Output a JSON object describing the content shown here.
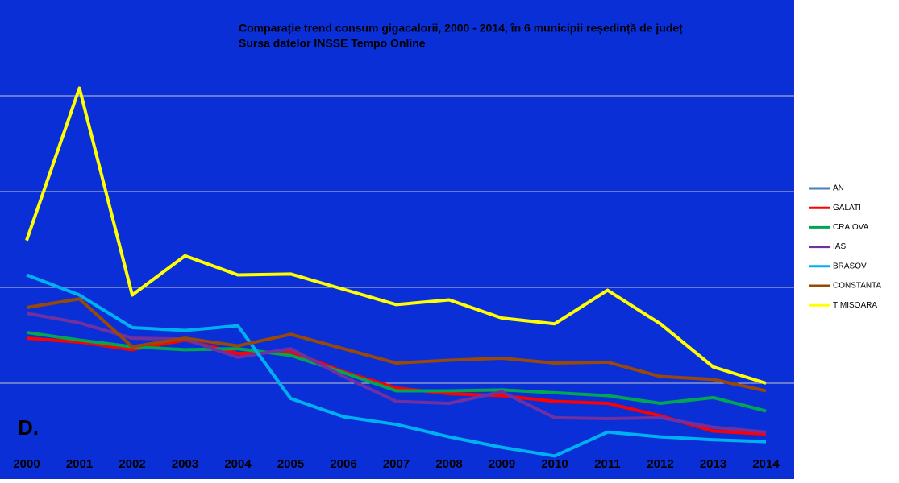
{
  "chart_data": {
    "type": "line",
    "title": "Comparație trend consum gigacalorii, 2000 - 2014, în 6 municipii reședință de județ",
    "subtitle": "Sursa datelor INSSE Tempo Online",
    "annotation": "D.",
    "categories": [
      "2000",
      "2001",
      "2002",
      "2003",
      "2004",
      "2005",
      "2006",
      "2007",
      "2008",
      "2009",
      "2010",
      "2011",
      "2012",
      "2013",
      "2014"
    ],
    "ylim": [
      0,
      5
    ],
    "yticks": [
      1,
      2,
      3,
      4
    ],
    "grid": true,
    "legend": "right",
    "series": [
      {
        "name": "AN",
        "color": "#4a7ebb",
        "values": [
          null,
          null,
          null,
          null,
          null,
          null,
          null,
          null,
          null,
          null,
          null,
          null,
          null,
          null,
          null
        ]
      },
      {
        "name": "GALATI",
        "color": "#ff0000",
        "values": [
          1.47,
          1.43,
          1.35,
          1.45,
          1.31,
          1.33,
          1.12,
          0.95,
          0.89,
          0.87,
          0.81,
          0.79,
          0.66,
          0.5,
          0.47
        ]
      },
      {
        "name": "CRAIOVA",
        "color": "#00a651",
        "values": [
          1.53,
          1.45,
          1.38,
          1.35,
          1.36,
          1.29,
          1.11,
          0.92,
          0.92,
          0.93,
          0.9,
          0.87,
          0.79,
          0.85,
          0.71
        ]
      },
      {
        "name": "IASI",
        "color": "#7030a0",
        "values": [
          1.73,
          1.63,
          1.47,
          1.46,
          1.27,
          1.36,
          1.07,
          0.81,
          0.79,
          0.91,
          0.64,
          0.63,
          0.64,
          0.54,
          0.49
        ]
      },
      {
        "name": "BRASOV",
        "color": "#00b0f0",
        "values": [
          2.13,
          1.92,
          1.58,
          1.55,
          1.6,
          0.84,
          0.65,
          0.57,
          0.44,
          0.33,
          0.24,
          0.49,
          0.44,
          0.41,
          0.39
        ]
      },
      {
        "name": "CONSTANTA",
        "color": "#984807",
        "values": [
          1.79,
          1.88,
          1.38,
          1.47,
          1.39,
          1.51,
          1.36,
          1.21,
          1.24,
          1.26,
          1.21,
          1.22,
          1.07,
          1.04,
          0.92
        ]
      },
      {
        "name": "TIMISOARA",
        "color": "#ffff00",
        "values": [
          2.49,
          4.08,
          1.92,
          2.33,
          2.13,
          2.14,
          1.98,
          1.82,
          1.87,
          1.68,
          1.62,
          1.97,
          1.62,
          1.17,
          1.0
        ]
      }
    ]
  }
}
